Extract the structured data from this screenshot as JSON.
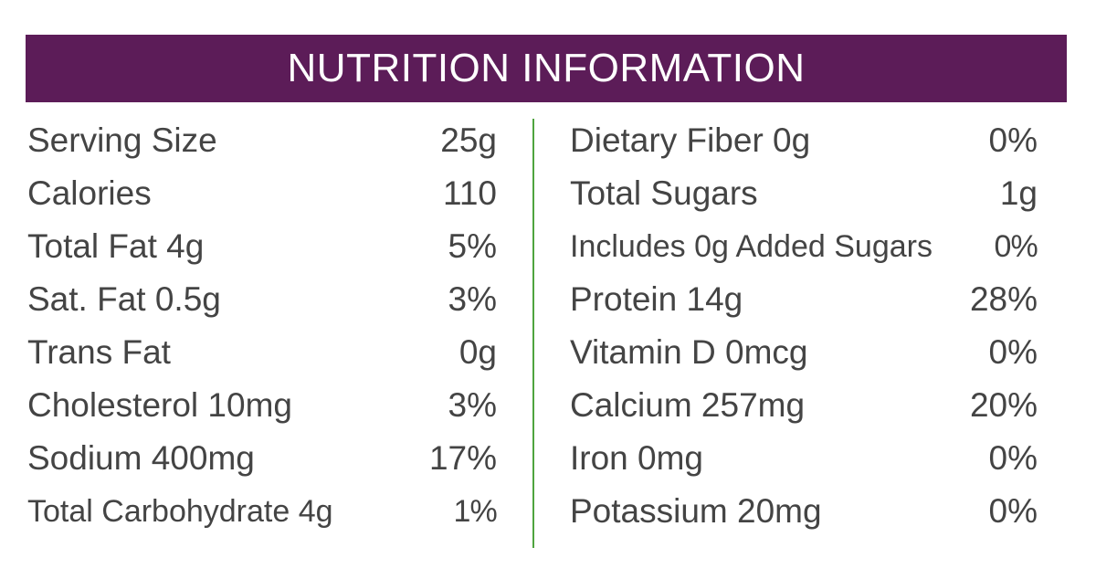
{
  "header": {
    "title": "NUTRITION INFORMATION"
  },
  "colors": {
    "header_bg": "#5c1c58",
    "divider": "#4fa43f",
    "text": "#444444"
  },
  "left_column": [
    {
      "label": "Serving Size",
      "value": "25g"
    },
    {
      "label": "Calories",
      "value": "110"
    },
    {
      "label": "Total Fat 4g",
      "value": "5%"
    },
    {
      "label": "Sat. Fat 0.5g",
      "value": "3%"
    },
    {
      "label": "Trans Fat",
      "value": "0g"
    },
    {
      "label": "Cholesterol 10mg",
      "value": "3%"
    },
    {
      "label": "Sodium 400mg",
      "value": "17%"
    },
    {
      "label": "Total Carbohydrate 4g",
      "value": "1%"
    }
  ],
  "right_column": [
    {
      "label": "Dietary Fiber 0g",
      "value": "0%"
    },
    {
      "label": "Total Sugars",
      "value": "1g"
    },
    {
      "label": "Includes 0g Added Sugars",
      "value": "0%"
    },
    {
      "label": "Protein 14g",
      "value": "28%"
    },
    {
      "label": "Vitamin D 0mcg",
      "value": "0%"
    },
    {
      "label": "Calcium 257mg",
      "value": "20%"
    },
    {
      "label": "Iron 0mg",
      "value": "0%"
    },
    {
      "label": "Potassium 20mg",
      "value": "0%"
    }
  ]
}
